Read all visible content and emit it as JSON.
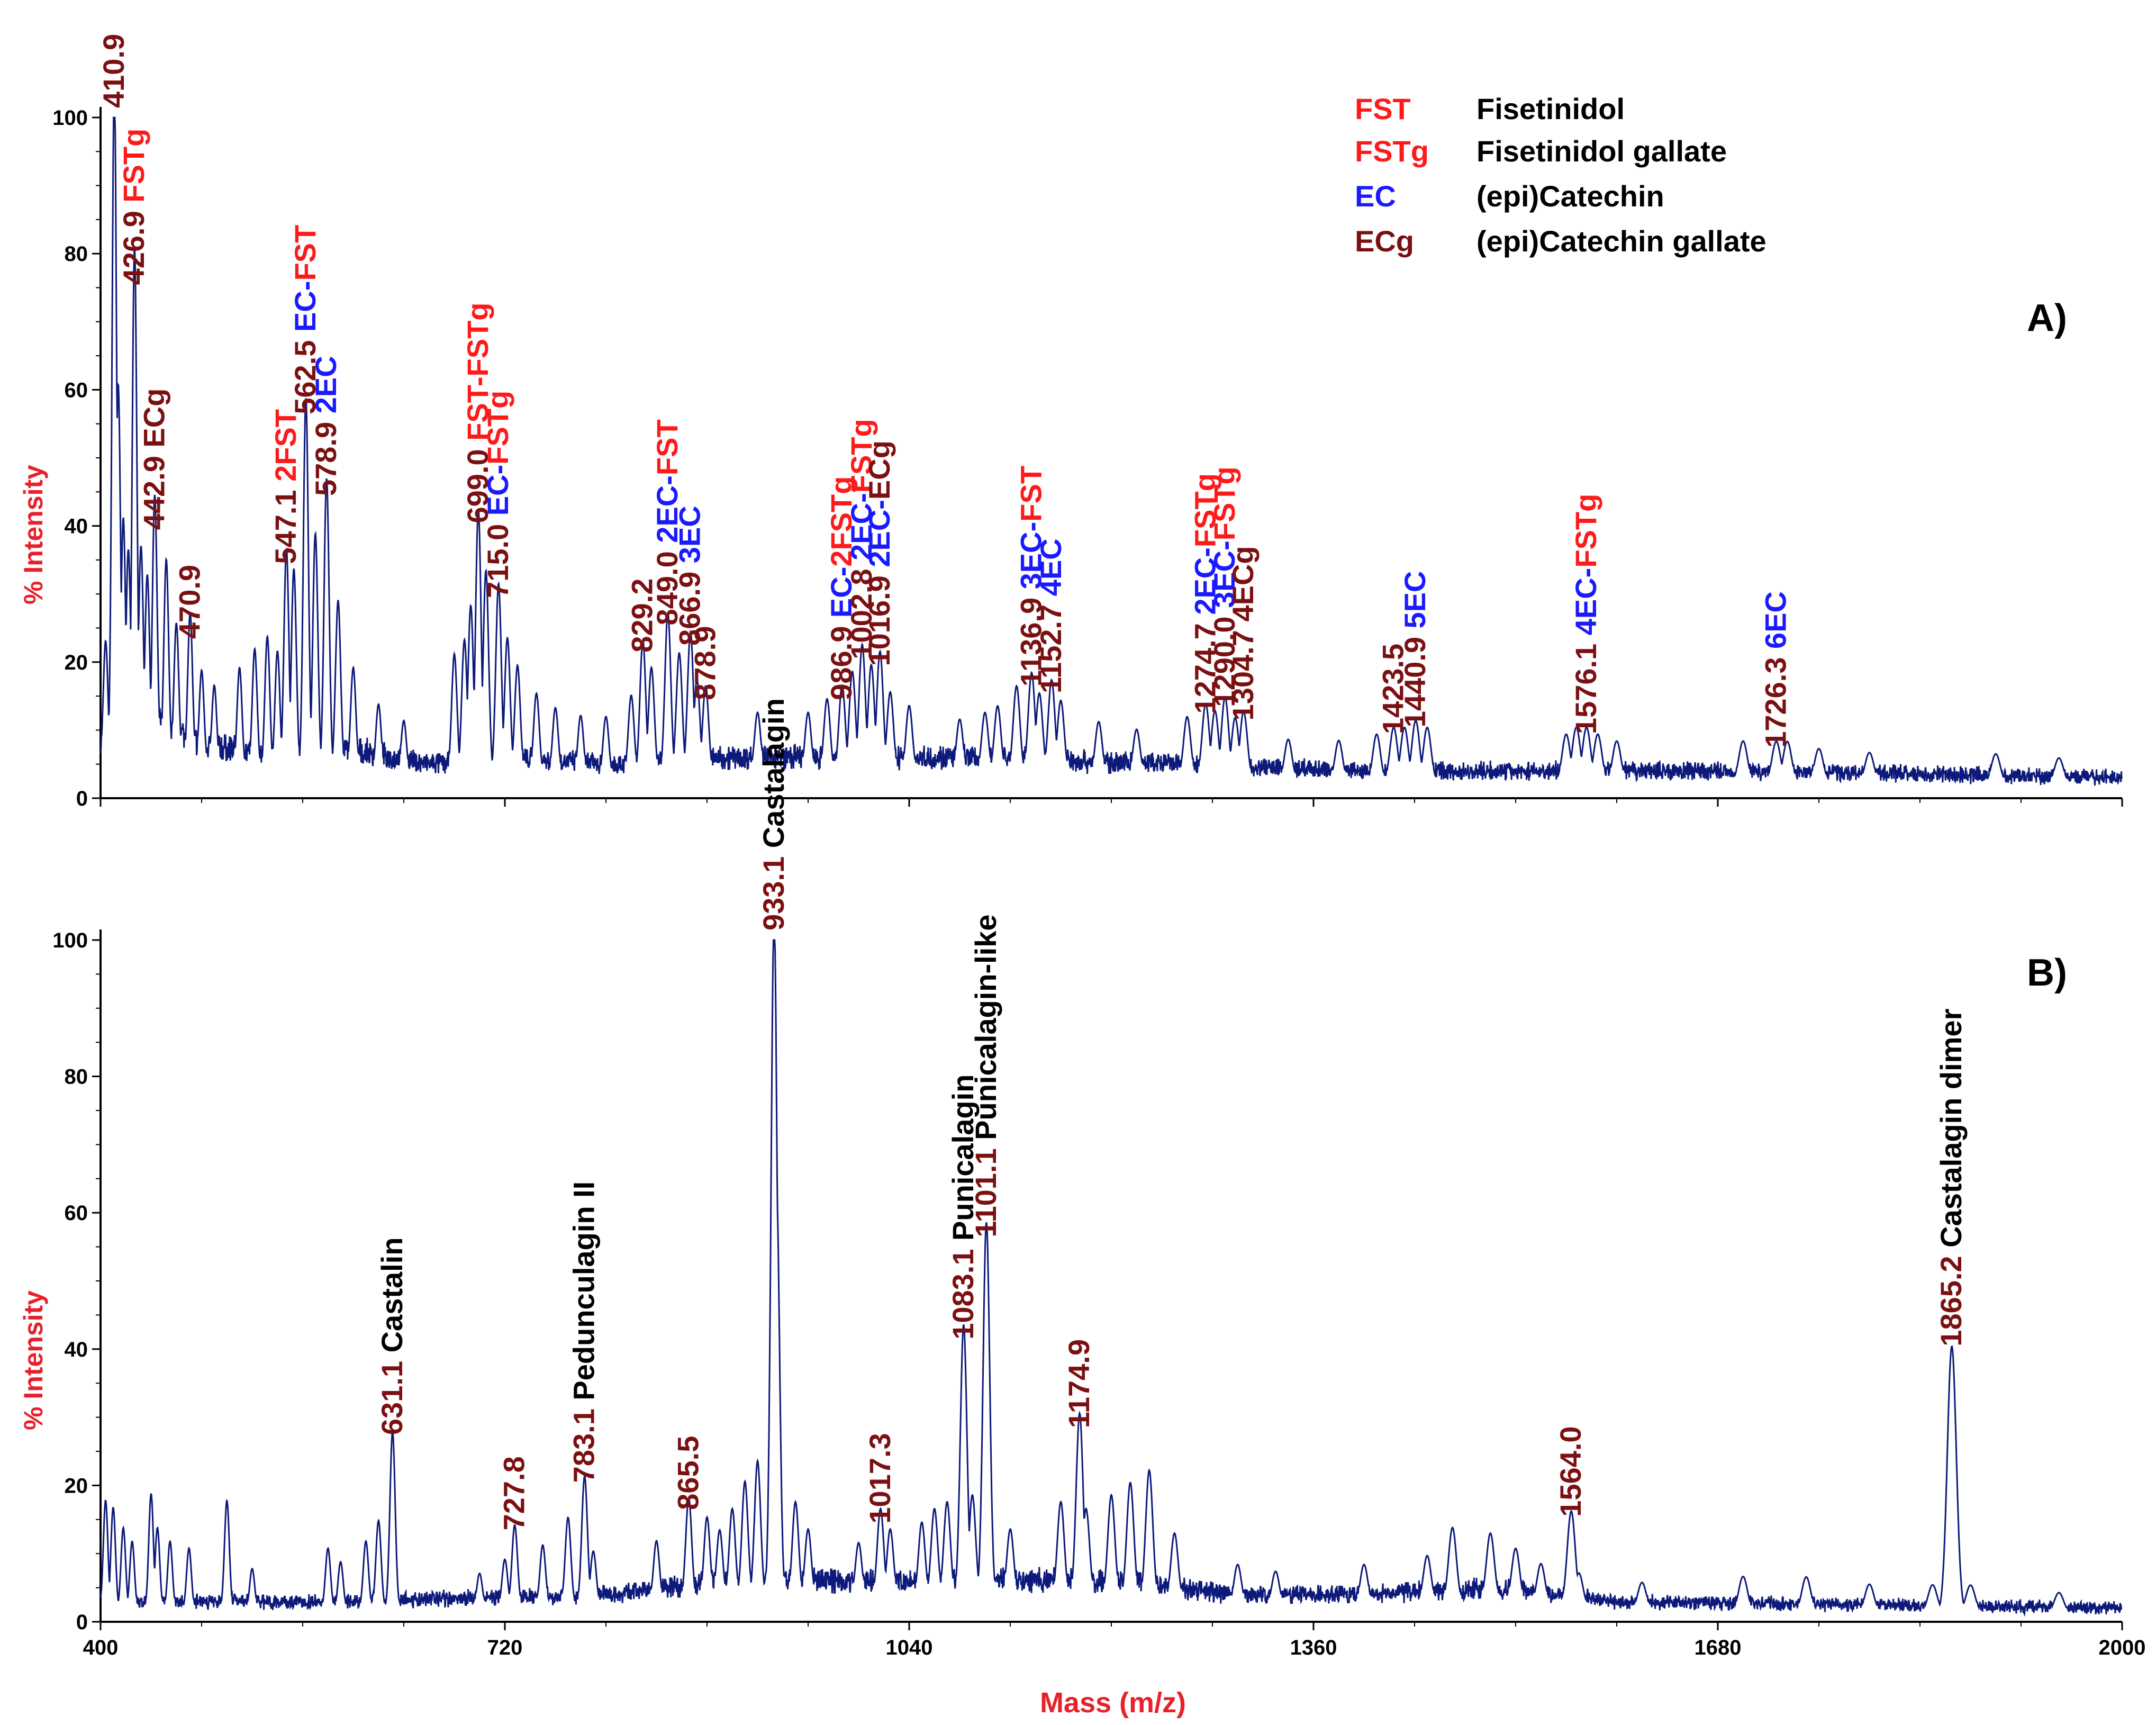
{
  "figure": {
    "x_axis_label": "Mass (m/z)",
    "y_axis_label": "% Intensity",
    "colors": {
      "line": "#0d1a7a",
      "mass_label": "#7b1012",
      "fst": "#ff1a1a",
      "ec": "#1a1aff",
      "ecg": "#7b1012",
      "compound": "#000000",
      "axis_label": "#e8202a"
    }
  },
  "legend": [
    {
      "abbr": "FST",
      "name": "Fisetinidol",
      "color": "#ff1a1a"
    },
    {
      "abbr": "FSTg",
      "name": "Fisetinidol gallate",
      "color": "#ff1a1a"
    },
    {
      "abbr": "EC",
      "name": "(epi)Catechin",
      "color": "#1a1aff"
    },
    {
      "abbr": "ECg",
      "name": "(epi)Catechin gallate",
      "color": "#7b1012"
    }
  ],
  "chart_data": [
    {
      "type": "line",
      "panel_label": "A)",
      "xlim": [
        400,
        2000
      ],
      "ylim": [
        0,
        100
      ],
      "xticks": [
        400,
        720,
        1040,
        1360,
        1680,
        2000
      ],
      "yticks": [
        0,
        20,
        40,
        60,
        80,
        100
      ],
      "baseline": [
        [
          400,
          8
        ],
        [
          430,
          12
        ],
        [
          480,
          8
        ],
        [
          540,
          6
        ],
        [
          600,
          7
        ],
        [
          660,
          5
        ],
        [
          720,
          6
        ],
        [
          800,
          5
        ],
        [
          900,
          6
        ],
        [
          1000,
          6
        ],
        [
          1100,
          6
        ],
        [
          1250,
          5
        ],
        [
          1400,
          4
        ],
        [
          1550,
          4
        ],
        [
          1700,
          4
        ],
        [
          1850,
          3.5
        ],
        [
          2000,
          3
        ]
      ],
      "peaks": [
        {
          "mz": 410.9,
          "intensity": 100,
          "label": "410.9",
          "ions": []
        },
        {
          "mz": 426.9,
          "intensity": 74,
          "label": "426.9",
          "ions": [
            {
              "text": "FSTg",
              "cls": "fst"
            }
          ]
        },
        {
          "mz": 442.9,
          "intensity": 38,
          "label": "442.9",
          "ions": [
            {
              "text": "ECg",
              "cls": "ecg"
            }
          ]
        },
        {
          "mz": 470.9,
          "intensity": 22,
          "label": "470.9",
          "ions": []
        },
        {
          "mz": 547.1,
          "intensity": 33,
          "label": "547.1",
          "ions": [
            {
              "text": "2FST",
              "cls": "fst"
            }
          ]
        },
        {
          "mz": 562.5,
          "intensity": 55,
          "label": "562.5",
          "ions": [
            {
              "text": "EC-FST",
              "cls": "ec-fst"
            }
          ]
        },
        {
          "mz": 578.9,
          "intensity": 43,
          "label": "578.9",
          "ions": [
            {
              "text": "2EC",
              "cls": "ec"
            }
          ]
        },
        {
          "mz": 699.0,
          "intensity": 39,
          "label": "699.0",
          "ions": [
            {
              "text": "FST-FSTg",
              "cls": "fst"
            }
          ]
        },
        {
          "mz": 715.0,
          "intensity": 28,
          "label": "715.0",
          "ions": [
            {
              "text": "EC-FSTg",
              "cls": "ec-fst"
            }
          ]
        },
        {
          "mz": 829.2,
          "intensity": 20,
          "label": "829.2",
          "ions": []
        },
        {
          "mz": 849.0,
          "intensity": 24,
          "label": "849.0",
          "ions": [
            {
              "text": "2EC-FST",
              "cls": "ec-fst"
            }
          ]
        },
        {
          "mz": 866.9,
          "intensity": 21,
          "label": "866.9",
          "ions": [
            {
              "text": "3EC",
              "cls": "ec"
            }
          ]
        },
        {
          "mz": 878.9,
          "intensity": 13,
          "label": "878.9",
          "ions": []
        },
        {
          "mz": 986.9,
          "intensity": 13,
          "label": "986.9",
          "ions": [
            {
              "text": "EC-2FSTg",
              "cls": "ec-fst"
            }
          ]
        },
        {
          "mz": 1002.8,
          "intensity": 19,
          "label": "1002.8",
          "ions": [
            {
              "text": "2EC-FSTg",
              "cls": "ec-fst"
            }
          ]
        },
        {
          "mz": 1016.9,
          "intensity": 18,
          "label": "1016.9",
          "ions": [
            {
              "text": "2EC-ECg",
              "cls": "ec-ecg"
            }
          ]
        },
        {
          "mz": 1136.9,
          "intensity": 15,
          "label": "1136.9",
          "ions": [
            {
              "text": "3EC-FST",
              "cls": "ec-fst"
            }
          ]
        },
        {
          "mz": 1152.7,
          "intensity": 14,
          "label": "1152.7",
          "ions": [
            {
              "text": "4EC",
              "cls": "ec"
            }
          ]
        },
        {
          "mz": 1274.7,
          "intensity": 11,
          "label": "1274.7",
          "ions": [
            {
              "text": "2EC-FSTg",
              "cls": "ec-fst"
            }
          ]
        },
        {
          "mz": 1290.0,
          "intensity": 12,
          "label": "1290.0",
          "ions": [
            {
              "text": "3EC-FSTg",
              "cls": "ec-fst"
            }
          ]
        },
        {
          "mz": 1304.7,
          "intensity": 10,
          "label": "1304.7",
          "ions": [
            {
              "text": "4ECg",
              "cls": "ecg"
            }
          ]
        },
        {
          "mz": 1423.5,
          "intensity": 8,
          "label": "1423.5",
          "ions": []
        },
        {
          "mz": 1440.9,
          "intensity": 9,
          "label": "1440.9",
          "ions": [
            {
              "text": "5EC",
              "cls": "ec"
            }
          ]
        },
        {
          "mz": 1576.1,
          "intensity": 8,
          "label": "1576.1",
          "ions": [
            {
              "text": "4EC-FSTg",
              "cls": "ec-fst"
            }
          ]
        },
        {
          "mz": 1726.3,
          "intensity": 6,
          "label": "1726.3",
          "ions": [
            {
              "text": "6EC",
              "cls": "ec"
            }
          ]
        }
      ],
      "minor_peaks": [
        [
          404,
          18
        ],
        [
          414,
          55
        ],
        [
          418,
          35
        ],
        [
          422,
          30
        ],
        [
          432,
          30
        ],
        [
          437,
          26
        ],
        [
          452,
          29
        ],
        [
          460,
          20
        ],
        [
          480,
          14
        ],
        [
          490,
          12
        ],
        [
          510,
          15
        ],
        [
          522,
          18
        ],
        [
          532,
          20
        ],
        [
          540,
          18
        ],
        [
          553,
          30
        ],
        [
          570,
          35
        ],
        [
          588,
          25
        ],
        [
          600,
          15
        ],
        [
          620,
          10
        ],
        [
          640,
          8
        ],
        [
          680,
          18
        ],
        [
          688,
          20
        ],
        [
          693,
          25
        ],
        [
          705,
          30
        ],
        [
          722,
          20
        ],
        [
          730,
          16
        ],
        [
          745,
          12
        ],
        [
          760,
          10
        ],
        [
          780,
          9
        ],
        [
          800,
          9
        ],
        [
          820,
          12
        ],
        [
          836,
          16
        ],
        [
          858,
          18
        ],
        [
          872,
          14
        ],
        [
          920,
          9
        ],
        [
          960,
          9
        ],
        [
          975,
          11
        ],
        [
          995,
          15
        ],
        [
          1010,
          16
        ],
        [
          1025,
          12
        ],
        [
          1040,
          10
        ],
        [
          1080,
          8
        ],
        [
          1100,
          9
        ],
        [
          1110,
          10
        ],
        [
          1125,
          13
        ],
        [
          1143,
          12
        ],
        [
          1160,
          11
        ],
        [
          1190,
          8
        ],
        [
          1220,
          7
        ],
        [
          1260,
          9
        ],
        [
          1282,
          10
        ],
        [
          1298,
          9
        ],
        [
          1340,
          6
        ],
        [
          1380,
          6
        ],
        [
          1410,
          7
        ],
        [
          1432,
          8
        ],
        [
          1450,
          8
        ],
        [
          1560,
          7
        ],
        [
          1568,
          8
        ],
        [
          1585,
          7
        ],
        [
          1600,
          6
        ],
        [
          1700,
          6
        ],
        [
          1735,
          6
        ],
        [
          1760,
          5
        ],
        [
          1800,
          4.5
        ],
        [
          1900,
          4.5
        ],
        [
          1950,
          4
        ]
      ],
      "annotations": []
    },
    {
      "type": "line",
      "panel_label": "B)",
      "xlim": [
        400,
        2000
      ],
      "ylim": [
        0,
        100
      ],
      "xticks": [
        400,
        720,
        1040,
        1360,
        1680,
        2000
      ],
      "yticks": [
        0,
        20,
        40,
        60,
        80,
        100
      ],
      "baseline": [
        [
          400,
          3
        ],
        [
          600,
          3
        ],
        [
          800,
          4
        ],
        [
          900,
          6
        ],
        [
          1000,
          6
        ],
        [
          1100,
          6
        ],
        [
          1200,
          6
        ],
        [
          1300,
          4
        ],
        [
          1400,
          4
        ],
        [
          1500,
          5
        ],
        [
          1600,
          3
        ],
        [
          1800,
          2.5
        ],
        [
          2000,
          2
        ]
      ],
      "peaks": [
        {
          "mz": 631.1,
          "intensity": 26,
          "label": "631.1",
          "ions": [
            {
              "text": "Castalin",
              "cls": "compound"
            }
          ]
        },
        {
          "mz": 727.8,
          "intensity": 12,
          "label": "727.8",
          "ions": []
        },
        {
          "mz": 783.1,
          "intensity": 19,
          "label": "783.1",
          "ions": [
            {
              "text": "Pedunculagin II",
              "cls": "compound"
            }
          ]
        },
        {
          "mz": 865.5,
          "intensity": 15,
          "label": "865.5",
          "ions": []
        },
        {
          "mz": 933.1,
          "intensity": 100,
          "label": "933.1",
          "ions": [
            {
              "text": "Castalagin",
              "cls": "compound"
            }
          ]
        },
        {
          "mz": 1017.3,
          "intensity": 13,
          "label": "1017.3",
          "ions": []
        },
        {
          "mz": 1083.1,
          "intensity": 40,
          "label": "1083.1",
          "ions": [
            {
              "text": "Punicalagin",
              "cls": "compound"
            }
          ]
        },
        {
          "mz": 1101.1,
          "intensity": 55,
          "label": "1101.1",
          "ions": [
            {
              "text": "Punicalagin-like",
              "cls": "compound"
            }
          ]
        },
        {
          "mz": 1174.9,
          "intensity": 27,
          "label": "1174.9",
          "ions": []
        },
        {
          "mz": 1564.0,
          "intensity": 14,
          "label": "1564.0",
          "ions": []
        },
        {
          "mz": 1865.2,
          "intensity": 39,
          "label": "1865.2",
          "ions": [
            {
              "text": "Castalagin dimer",
              "cls": "compound"
            }
          ]
        }
      ],
      "minor_peaks": [
        [
          404,
          16
        ],
        [
          410,
          15
        ],
        [
          418,
          12
        ],
        [
          425,
          10
        ],
        [
          440,
          17
        ],
        [
          445,
          12
        ],
        [
          455,
          10
        ],
        [
          470,
          9
        ],
        [
          500,
          16
        ],
        [
          520,
          6
        ],
        [
          580,
          9
        ],
        [
          590,
          7
        ],
        [
          610,
          10
        ],
        [
          620,
          13
        ],
        [
          700,
          5
        ],
        [
          720,
          7
        ],
        [
          750,
          9
        ],
        [
          770,
          13
        ],
        [
          790,
          8
        ],
        [
          840,
          9
        ],
        [
          880,
          12
        ],
        [
          890,
          10
        ],
        [
          900,
          13
        ],
        [
          910,
          17
        ],
        [
          920,
          20
        ],
        [
          935,
          60
        ],
        [
          950,
          14
        ],
        [
          960,
          10
        ],
        [
          1000,
          8
        ],
        [
          1025,
          10
        ],
        [
          1050,
          11
        ],
        [
          1060,
          13
        ],
        [
          1070,
          14
        ],
        [
          1090,
          15
        ],
        [
          1120,
          10
        ],
        [
          1160,
          14
        ],
        [
          1180,
          13
        ],
        [
          1200,
          15
        ],
        [
          1215,
          17
        ],
        [
          1230,
          19
        ],
        [
          1250,
          10
        ],
        [
          1300,
          6
        ],
        [
          1330,
          5
        ],
        [
          1400,
          6
        ],
        [
          1450,
          7
        ],
        [
          1470,
          11
        ],
        [
          1500,
          10
        ],
        [
          1520,
          8
        ],
        [
          1540,
          6
        ],
        [
          1570,
          5
        ],
        [
          1620,
          4
        ],
        [
          1700,
          5
        ],
        [
          1750,
          5
        ],
        [
          1800,
          4
        ],
        [
          1850,
          4
        ],
        [
          1880,
          4
        ],
        [
          1950,
          3
        ]
      ],
      "annotations": []
    }
  ]
}
